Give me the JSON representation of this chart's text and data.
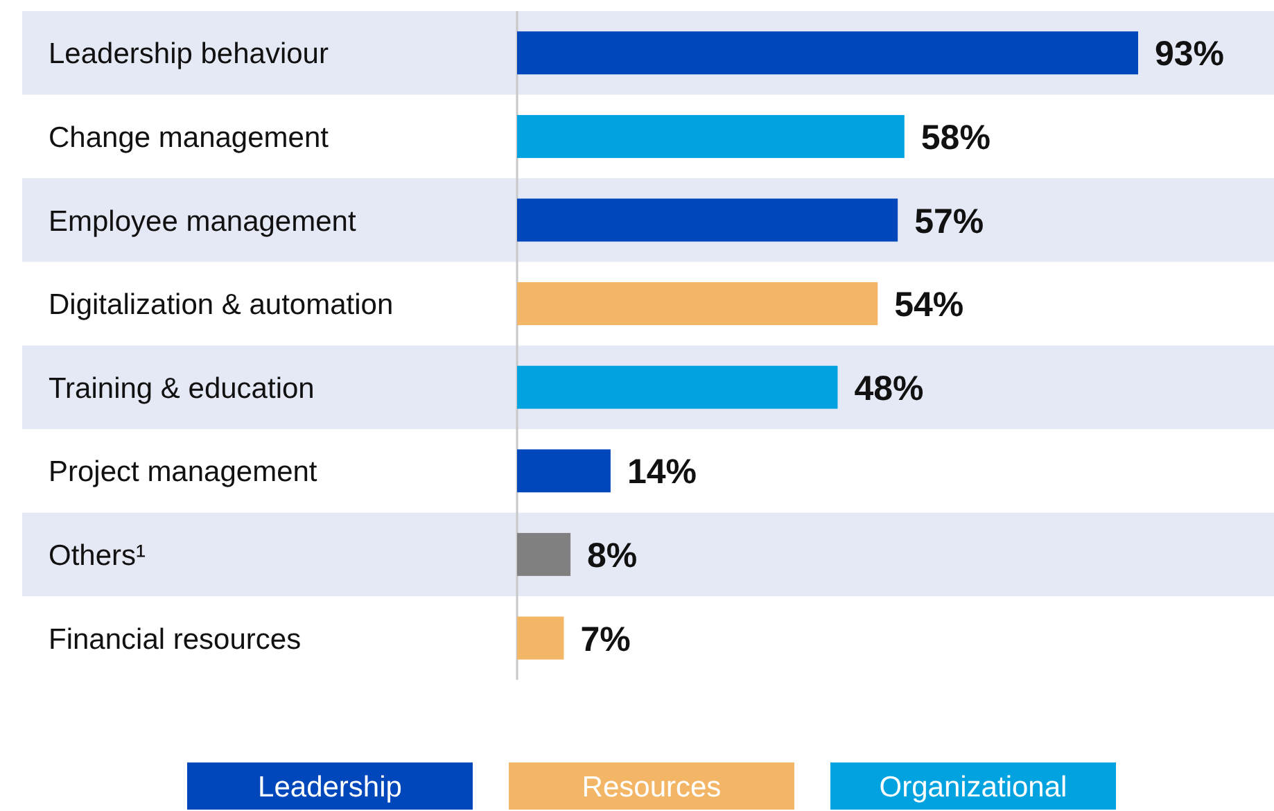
{
  "chart_data": {
    "type": "bar",
    "orientation": "horizontal",
    "legend": "bottom",
    "categories": [
      "Leadership behaviour",
      "Change management",
      "Employee management",
      "Digitalization & automation",
      "Training & education",
      "Project management",
      "Others¹",
      "Financial resources"
    ],
    "series": [
      {
        "name": "Leadership",
        "color": "#0047bb",
        "values": [
          93,
          null,
          57,
          null,
          null,
          14,
          null,
          null
        ],
        "value_labels": [
          "93%",
          null,
          "57%",
          null,
          null,
          "14%",
          null,
          null
        ]
      },
      {
        "name": "Resources",
        "color": "#f3b666",
        "values": [
          null,
          null,
          null,
          54,
          null,
          null,
          null,
          7
        ],
        "value_labels": [
          null,
          null,
          null,
          "54%",
          null,
          null,
          null,
          "7%"
        ]
      },
      {
        "name": "Organizational",
        "color": "#00a3e0",
        "values": [
          null,
          58,
          null,
          null,
          48,
          null,
          null,
          null
        ],
        "value_labels": [
          null,
          "58%",
          null,
          null,
          "48%",
          null,
          null,
          null
        ]
      },
      {
        "color": "#808080",
        "values": [
          null,
          null,
          null,
          null,
          null,
          null,
          8,
          null
        ],
        "value_labels": [
          null,
          null,
          null,
          null,
          null,
          null,
          "8%",
          null
        ]
      }
    ]
  }
}
